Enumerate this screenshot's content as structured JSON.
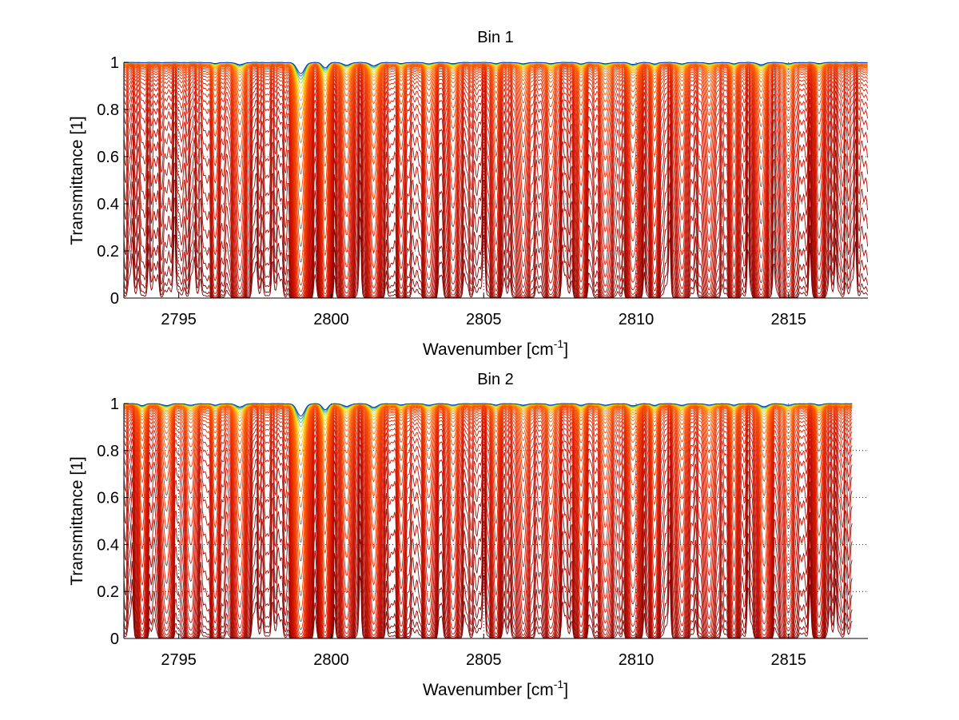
{
  "chart_data": [
    {
      "type": "line",
      "title": "Bin 1",
      "xlabel": "Wavenumber [cm",
      "xlabel_sup": "-1",
      "xlabel_tail": "]",
      "ylabel": "Transmittance [1]",
      "xlim": [
        2793.2,
        2817.6
      ],
      "ylim": [
        0,
        1
      ],
      "xticks": [
        2795,
        2800,
        2805,
        2810,
        2815
      ],
      "xtick_labels": [
        "2795",
        "2800",
        "2805",
        "2810",
        "2815"
      ],
      "yticks": [
        0,
        0.2,
        0.4,
        0.6,
        0.8,
        1
      ],
      "ytick_labels": [
        "0",
        "0.2",
        "0.4",
        "0.6",
        "0.8",
        "1"
      ],
      "grid": true,
      "series_count": 40,
      "x_end": 2817.6,
      "line_positions": [
        2796.2,
        2797.0,
        2799.0,
        2799.8,
        2800.5,
        2801.4,
        2802.3,
        2803.2,
        2804.0,
        2805.4,
        2806.3,
        2807.2,
        2808.2,
        2809.0,
        2809.9,
        2810.6,
        2811.5,
        2812.4,
        2813.2,
        2814.1,
        2815.0,
        2816.0
      ],
      "line_strengths": [
        0.3,
        0.6,
        3.2,
        1.5,
        0.7,
        0.9,
        0.3,
        0.35,
        0.3,
        0.3,
        0.35,
        0.3,
        0.4,
        0.35,
        0.5,
        0.4,
        0.35,
        0.3,
        0.35,
        0.6,
        0.35,
        0.3
      ]
    },
    {
      "type": "line",
      "title": "Bin 2",
      "xlabel": "Wavenumber [cm",
      "xlabel_sup": "-1",
      "xlabel_tail": "]",
      "ylabel": "Transmittance [1]",
      "xlim": [
        2793.2,
        2817.6
      ],
      "ylim": [
        0,
        1
      ],
      "xticks": [
        2795,
        2800,
        2805,
        2810,
        2815
      ],
      "xtick_labels": [
        "2795",
        "2800",
        "2805",
        "2810",
        "2815"
      ],
      "yticks": [
        0,
        0.2,
        0.4,
        0.6,
        0.8,
        1
      ],
      "ytick_labels": [
        "0",
        "0.2",
        "0.4",
        "0.6",
        "0.8",
        "1"
      ],
      "grid": true,
      "series_count": 40,
      "x_end": 2817.1,
      "line_positions": [
        2793.8,
        2794.6,
        2795.4,
        2796.2,
        2797.0,
        2799.0,
        2799.8,
        2800.5,
        2801.4,
        2802.3,
        2803.2,
        2804.0,
        2805.4,
        2806.3,
        2807.2,
        2808.2,
        2809.0,
        2809.9,
        2810.6,
        2811.5,
        2812.4,
        2813.2,
        2814.2,
        2815.0,
        2816.0
      ],
      "line_strengths": [
        0.5,
        0.5,
        0.4,
        0.4,
        0.9,
        3.6,
        1.7,
        0.7,
        1.0,
        0.35,
        0.4,
        0.35,
        0.35,
        0.4,
        0.35,
        0.45,
        0.4,
        0.55,
        0.45,
        0.4,
        0.35,
        0.4,
        0.8,
        0.4,
        0.35
      ]
    }
  ]
}
